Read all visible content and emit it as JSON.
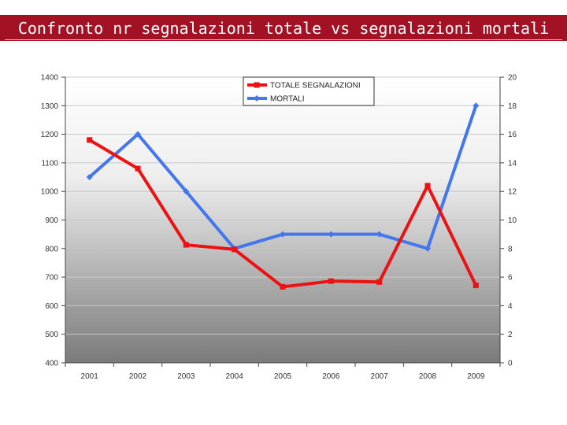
{
  "header": {
    "title": "Confronto nr segnalazioni totale vs segnalazioni mortali",
    "background": "#a31224"
  },
  "chart_data": {
    "type": "line",
    "title": "Confronto nr segnalazioni totale vs segnalazioni mortali",
    "categories": [
      "2001",
      "2002",
      "2003",
      "2004",
      "2005",
      "2006",
      "2007",
      "2008",
      "2009"
    ],
    "series": [
      {
        "name": "TOTALE SEGNALAZIONI",
        "axis": "left",
        "color": "#ee1111",
        "marker": "square",
        "values": [
          1180,
          1080,
          813,
          797,
          666,
          686,
          683,
          1020,
          671
        ]
      },
      {
        "name": "MORTALI",
        "axis": "right",
        "color": "#4477ee",
        "marker": "diamond",
        "values": [
          13,
          16,
          12,
          8,
          9,
          9,
          9,
          8,
          18
        ]
      }
    ],
    "y_left": {
      "min": 400,
      "max": 1400,
      "ticks": [
        "400",
        "500",
        "600",
        "700",
        "800",
        "900",
        "1000",
        "1100",
        "1200",
        "1300",
        "1400"
      ]
    },
    "y_right": {
      "min": 0,
      "max": 20,
      "ticks": [
        "0",
        "2",
        "4",
        "6",
        "8",
        "10",
        "12",
        "14",
        "16",
        "18",
        "20"
      ]
    },
    "grid": true,
    "legend": "top-center"
  }
}
